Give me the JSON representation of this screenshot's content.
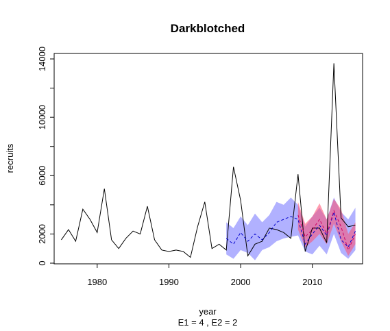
{
  "chart_data": {
    "type": "line",
    "title": "Darkblotched",
    "xlabel": "year",
    "subtitle": "E1 = 4 , E2 = 2",
    "ylabel": "recruits",
    "xlim": [
      1974,
      2017
    ],
    "ylim": [
      0,
      14200
    ],
    "x_ticks": [
      1980,
      1990,
      2000,
      2010
    ],
    "y_ticks": [
      0,
      2000,
      6000,
      10000,
      14000
    ],
    "grid": false,
    "legend": "none",
    "series": [
      {
        "role": "observed",
        "color": "#000000",
        "x": [
          1975,
          1976,
          1977,
          1978,
          1979,
          1980,
          1981,
          1982,
          1983,
          1984,
          1985,
          1986,
          1987,
          1988,
          1989,
          1990,
          1991,
          1992,
          1993,
          1994,
          1995,
          1996,
          1997,
          1998,
          1999,
          2000,
          2001,
          2002,
          2003,
          2004,
          2005,
          2006,
          2007,
          2008,
          2009,
          2010,
          2011,
          2012,
          2013,
          2014,
          2015,
          2016
        ],
        "y": [
          1600,
          2300,
          1500,
          3700,
          3000,
          2100,
          5100,
          1600,
          1000,
          1700,
          2200,
          2000,
          3900,
          1600,
          900,
          800,
          900,
          800,
          400,
          2500,
          4200,
          1000,
          1300,
          900,
          6600,
          4300,
          500,
          1300,
          1500,
          2400,
          2300,
          2100,
          1700,
          6100,
          800,
          2400,
          2400,
          1400,
          13700,
          3100,
          2500,
          2600
        ]
      },
      {
        "role": "forecast E1",
        "color": "#0000cc",
        "dashed": true,
        "x": [
          1998,
          1999,
          2000,
          2001,
          2002,
          2003,
          2004,
          2005,
          2006,
          2007,
          2008,
          2009,
          2010,
          2011,
          2012,
          2013,
          2014,
          2015,
          2016
        ],
        "y": [
          1700,
          1300,
          2100,
          1500,
          2000,
          1600,
          2100,
          2800,
          3000,
          3200,
          3000,
          1300,
          2000,
          2600,
          1900,
          3500,
          1600,
          1100,
          2200
        ],
        "lower": [
          600,
          300,
          900,
          700,
          200,
          900,
          1100,
          1500,
          1700,
          1800,
          1900,
          800,
          600,
          1200,
          600,
          2000,
          700,
          300,
          900
        ],
        "upper": [
          2800,
          2400,
          3200,
          2600,
          3400,
          2800,
          3300,
          4200,
          4000,
          4500,
          4000,
          2500,
          3200,
          3800,
          3000,
          4500,
          3500,
          3000,
          3800
        ],
        "band_color": "#6464ff"
      },
      {
        "role": "forecast E2",
        "color": "#cc0066",
        "dashed": true,
        "x": [
          2008,
          2009,
          2010,
          2011,
          2012,
          2013,
          2014,
          2015,
          2016
        ],
        "y": [
          3300,
          1800,
          2300,
          3000,
          2000,
          3600,
          2500,
          900,
          2000
        ],
        "lower": [
          2300,
          1100,
          1500,
          2000,
          1300,
          2700,
          1500,
          500,
          1300
        ],
        "upper": [
          4200,
          2700,
          3200,
          4100,
          3000,
          4400,
          3700,
          2000,
          2800
        ],
        "band_color": "#ff4d6d"
      }
    ]
  }
}
